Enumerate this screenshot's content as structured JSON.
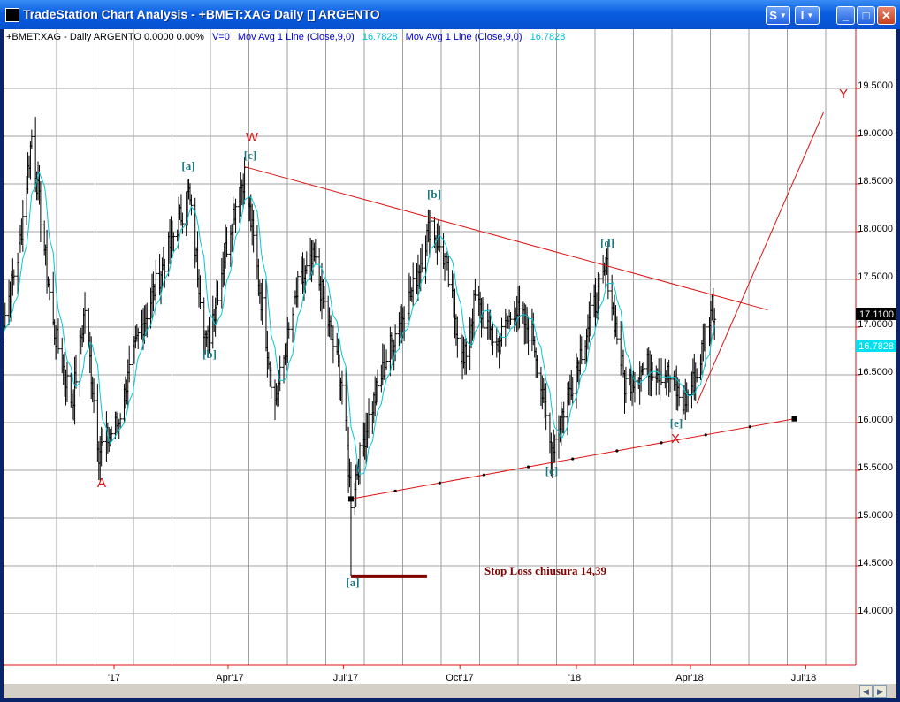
{
  "window": {
    "title": "TradeStation Chart Analysis - +BMET:XAG Daily [] ARGENTO",
    "btn_s": "S",
    "btn_i": "I",
    "btn_min": "_",
    "btn_max": "□",
    "btn_close": "✕"
  },
  "header": {
    "symbol": "+BMET:XAG - Daily  ARGENTO  0.0000  0.00%",
    "volume": "V=0",
    "ma1_label": "Mov Avg 1 Line (Close,9,0)",
    "ma1_value": "16.7828",
    "ma2_label": "Mov Avg 1 Line (Close,9,0)",
    "ma2_value": "16.7828"
  },
  "price_axis": {
    "ticks": [
      "19.5000",
      "19.0000",
      "18.5000",
      "18.0000",
      "17.5000",
      "17.0000",
      "16.5000",
      "16.0000",
      "15.5000",
      "15.0000",
      "14.5000",
      "14.0000"
    ],
    "last_price": "17.1100",
    "ma_price": "16.7828"
  },
  "time_axis": {
    "labels": [
      "'17",
      "Apr'17",
      "Jul'17",
      "Oct'17",
      "'18",
      "Apr'18",
      "Jul'18"
    ]
  },
  "annotations": {
    "A": "A",
    "W": "W",
    "X": "X",
    "Y": "Y",
    "a1": "[a]",
    "c1": "[c]",
    "b1": "[b]",
    "a2": "[a]",
    "b2": "[b]",
    "c2": "[c]",
    "d2": "[d]",
    "e2": "[e]",
    "stop_loss": "Stop Loss chiusura 14,39"
  },
  "colors": {
    "background": "#ffffff",
    "grid": "#a0a0a0",
    "bars": "#000000",
    "moving_average": "#00c8d8",
    "trendline": "#dd1111",
    "wave_labels": "#1a7a80",
    "stop_line": "#800000",
    "last_price_tag": "#000000",
    "ma_price_tag": "#00e0f0"
  },
  "chart_data": {
    "type": "candlestick",
    "title": "+BMET:XAG - Daily ARGENTO",
    "ylim": [
      13.5,
      20.0
    ],
    "path": [
      [
        "2016-10-03",
        16.9
      ],
      [
        "2016-10-18",
        17.8
      ],
      [
        "2016-10-28",
        19.0
      ],
      [
        "2016-11-14",
        17.0
      ],
      [
        "2016-11-29",
        16.2
      ],
      [
        "2016-12-09",
        17.2
      ],
      [
        "2016-12-20",
        15.7
      ],
      [
        "2017-01-04",
        16.0
      ],
      [
        "2017-01-20",
        16.9
      ],
      [
        "2017-02-10",
        17.7
      ],
      [
        "2017-03-01",
        18.4
      ],
      [
        "2017-03-15",
        16.8
      ],
      [
        "2017-04-05",
        18.2
      ],
      [
        "2017-04-14",
        18.6
      ],
      [
        "2017-05-08",
        16.2
      ],
      [
        "2017-05-26",
        17.4
      ],
      [
        "2017-06-08",
        17.7
      ],
      [
        "2017-06-30",
        16.4
      ],
      [
        "2017-07-07",
        15.2
      ],
      [
        "2017-07-20",
        16.0
      ],
      [
        "2017-08-07",
        16.8
      ],
      [
        "2017-08-25",
        17.4
      ],
      [
        "2017-09-08",
        18.1
      ],
      [
        "2017-09-19",
        17.7
      ],
      [
        "2017-10-04",
        16.6
      ],
      [
        "2017-10-13",
        17.3
      ],
      [
        "2017-10-30",
        16.8
      ],
      [
        "2017-11-13",
        17.2
      ],
      [
        "2017-11-28",
        16.9
      ],
      [
        "2017-12-12",
        15.7
      ],
      [
        "2017-12-28",
        16.4
      ],
      [
        "2018-01-12",
        17.1
      ],
      [
        "2018-01-25",
        17.6
      ],
      [
        "2018-02-08",
        16.4
      ],
      [
        "2018-02-27",
        16.6
      ],
      [
        "2018-03-14",
        16.5
      ],
      [
        "2018-03-26",
        16.2
      ],
      [
        "2018-04-06",
        16.5
      ],
      [
        "2018-04-18",
        17.25
      ],
      [
        "2018-04-20",
        17.11
      ]
    ],
    "moving_average_period": 9,
    "trendlines": [
      {
        "from": [
          "2017-04-14",
          18.68
        ],
        "to": [
          "2018-06-01",
          17.18
        ]
      },
      {
        "from": [
          "2017-07-07",
          15.2
        ],
        "to": [
          "2018-06-22",
          16.04
        ]
      },
      {
        "from": [
          "2018-04-06",
          16.2
        ],
        "to": [
          "2018-07-15",
          19.25
        ]
      },
      {
        "from": [
          "2017-07-07",
          15.2
        ],
        "to": [
          "2017-07-07",
          14.39
        ]
      },
      {
        "from": [
          "2017-07-07",
          14.39
        ],
        "to": [
          "2017-09-05",
          14.39
        ]
      }
    ]
  }
}
